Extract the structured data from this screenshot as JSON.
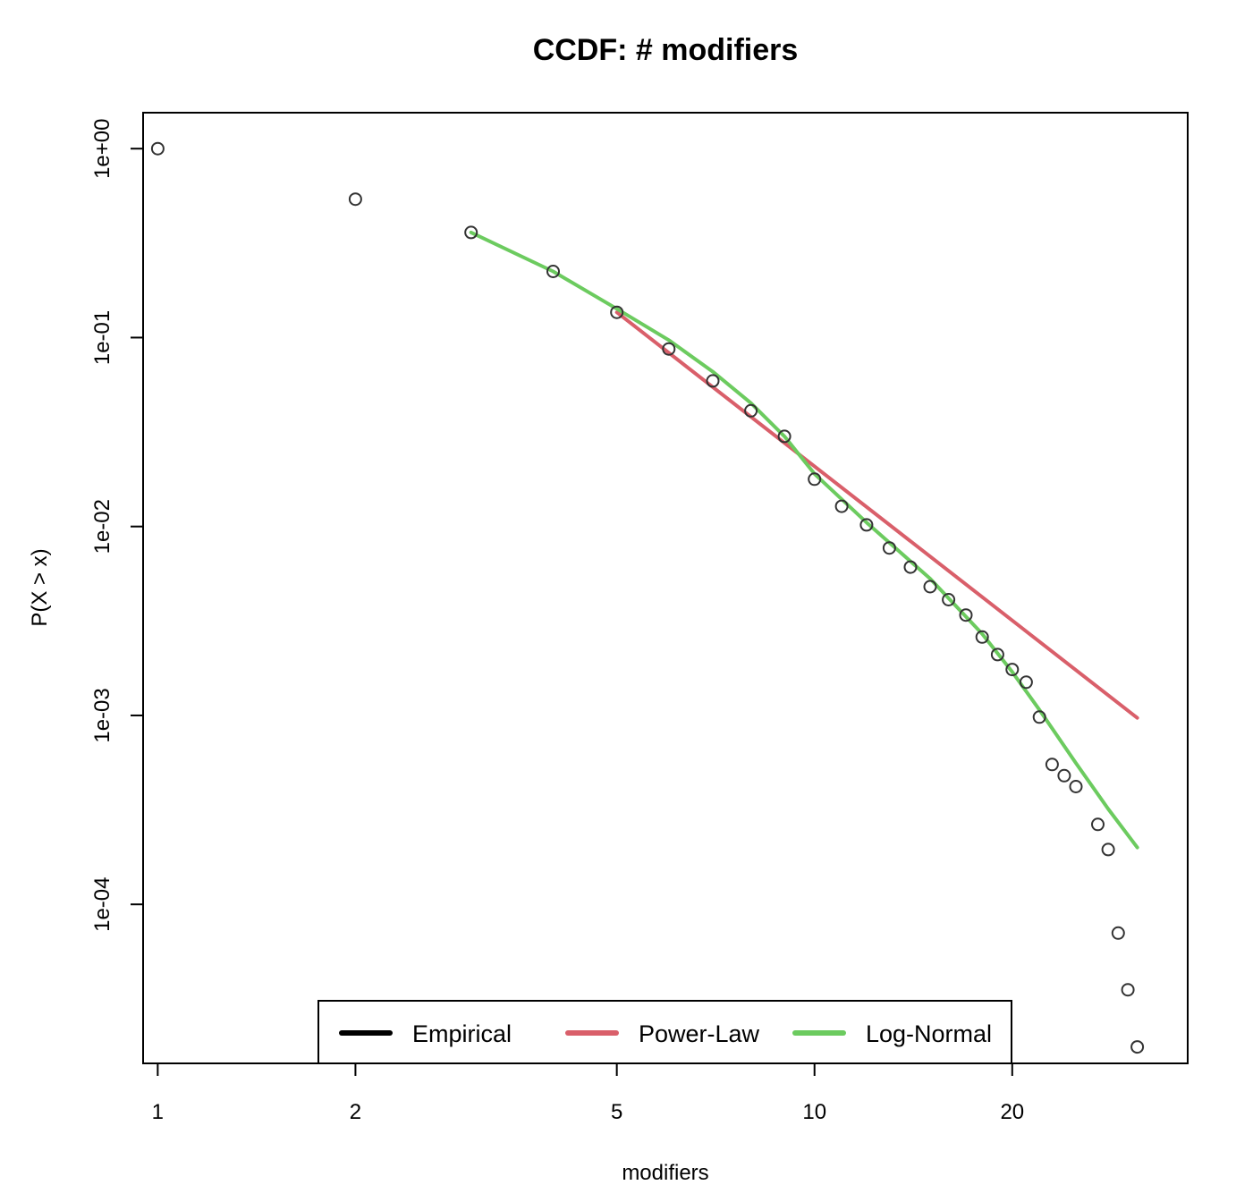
{
  "chart_data": {
    "type": "scatter",
    "title": "CCDF: # modifiers",
    "xlabel": "modifiers",
    "ylabel": "P(X > x)",
    "x_scale": "log",
    "y_scale": "log",
    "xlim": [
      0.95,
      37
    ],
    "ylim": [
      1.44e-05,
      1.55
    ],
    "x_ticks": [
      {
        "value": 1,
        "label": "1"
      },
      {
        "value": 2,
        "label": "2"
      },
      {
        "value": 5,
        "label": "5"
      },
      {
        "value": 10,
        "label": "10"
      },
      {
        "value": 20,
        "label": "20"
      }
    ],
    "y_ticks": [
      {
        "value": 1,
        "label": "1e+00"
      },
      {
        "value": 0.1,
        "label": "1e-01"
      },
      {
        "value": 0.01,
        "label": "1e-02"
      },
      {
        "value": 0.001,
        "label": "1e-03"
      },
      {
        "value": 0.0001,
        "label": "1e-04"
      }
    ],
    "grid": false,
    "legend_position": "bottom-center",
    "series": [
      {
        "name": "Empirical",
        "kind": "points",
        "color": "#000000",
        "points": [
          [
            1,
            1.0
          ],
          [
            2,
            0.54
          ],
          [
            3,
            0.36
          ],
          [
            4,
            0.224
          ],
          [
            5,
            0.136
          ],
          [
            6,
            0.087
          ],
          [
            7,
            0.059
          ],
          [
            8,
            0.041
          ],
          [
            9,
            0.03
          ],
          [
            10,
            0.0178
          ],
          [
            11,
            0.0128
          ],
          [
            12,
            0.0102
          ],
          [
            13,
            0.0077
          ],
          [
            14,
            0.0061
          ],
          [
            15,
            0.0048
          ],
          [
            16,
            0.0041
          ],
          [
            17,
            0.0034
          ],
          [
            18,
            0.0026
          ],
          [
            19,
            0.0021
          ],
          [
            20,
            0.00175
          ],
          [
            21,
            0.0015
          ],
          [
            22,
            0.00098
          ],
          [
            23,
            0.00055
          ],
          [
            24,
            0.00048
          ],
          [
            25,
            0.00042
          ],
          [
            27,
            0.000265
          ],
          [
            28,
            0.000195
          ],
          [
            29,
            7.05e-05
          ],
          [
            30,
            3.53e-05
          ],
          [
            31,
            1.76e-05
          ]
        ]
      },
      {
        "name": "Power-Law",
        "kind": "line",
        "color": "#D95F6A",
        "points": [
          [
            5,
            0.136
          ],
          [
            31,
            0.00097
          ]
        ]
      },
      {
        "name": "Log-Normal",
        "kind": "line",
        "color": "#6CCB5F",
        "points": [
          [
            3,
            0.36
          ],
          [
            4,
            0.224
          ],
          [
            5,
            0.142
          ],
          [
            6,
            0.097
          ],
          [
            7,
            0.066
          ],
          [
            8,
            0.045
          ],
          [
            9,
            0.03
          ],
          [
            10,
            0.019
          ],
          [
            12,
            0.0105
          ],
          [
            15,
            0.0053
          ],
          [
            18,
            0.0027
          ],
          [
            20,
            0.0017
          ],
          [
            22,
            0.00107
          ],
          [
            25,
            0.00056
          ],
          [
            28,
            0.00032
          ],
          [
            31,
            0.0002
          ]
        ]
      }
    ]
  }
}
